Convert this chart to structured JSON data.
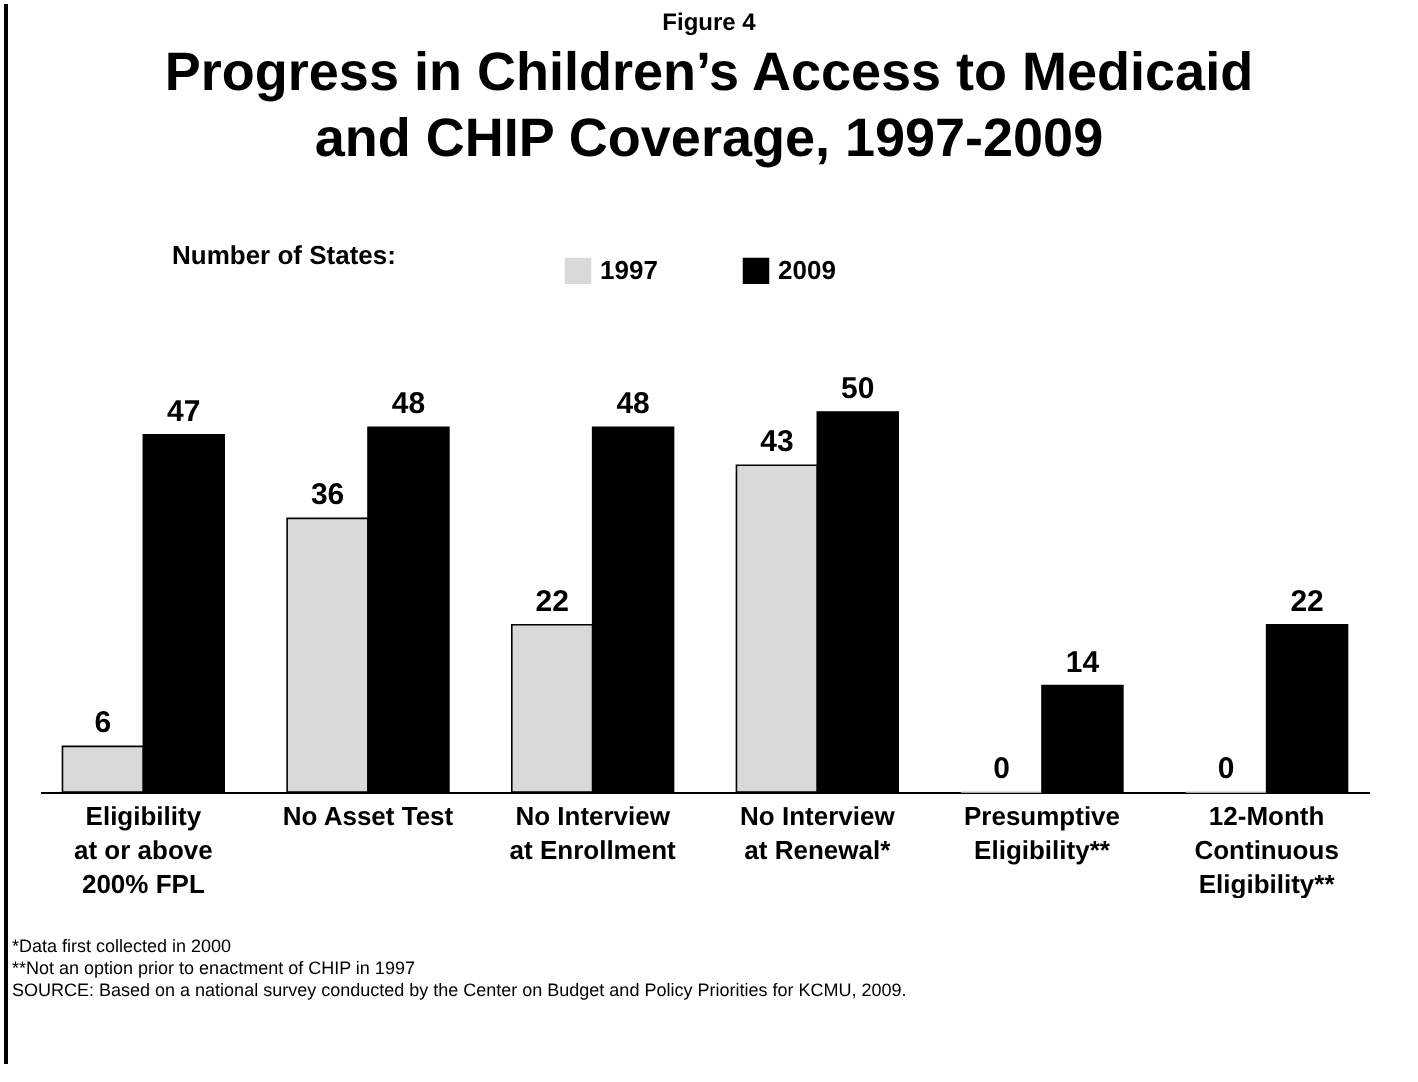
{
  "chart_data": {
    "type": "bar",
    "title": "Progress in Children’s Access to Medicaid and CHIP Coverage, 1997-2009",
    "annotations": [
      "Figure 4",
      "Number of States:",
      "*Data first collected in 2000",
      "**Not an option prior to enactment of CHIP in 1997",
      "SOURCE: Based on a national survey conducted by the Center on Budget and Policy Priorities for KCMU, 2009."
    ],
    "categories": [
      "Eligibility at or above 200% FPL",
      "No Asset Test",
      "No Interview at Enrollment",
      "No Interview at Renewal*",
      "Presumptive Eligibility**",
      "12-Month Continuous Eligibility**"
    ],
    "series": [
      {
        "name": "1997",
        "color": "#d9d9d9",
        "values": [
          6,
          36,
          22,
          43,
          0,
          0
        ]
      },
      {
        "name": "2009",
        "color": "#000000",
        "values": [
          47,
          48,
          48,
          50,
          14,
          22
        ]
      }
    ],
    "data_labels": true,
    "legend": "top"
  }
}
